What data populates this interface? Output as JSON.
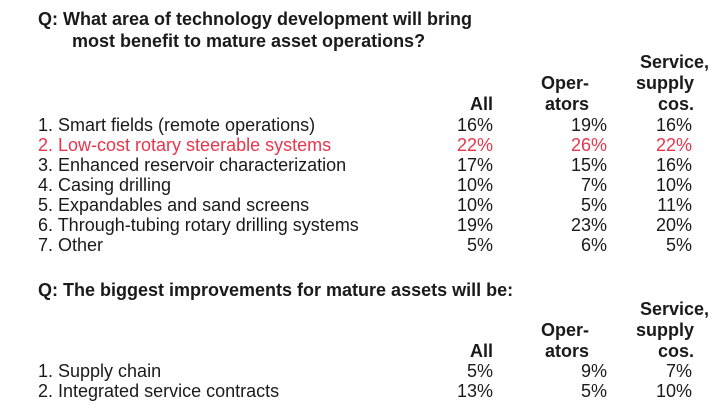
{
  "section1": {
    "question_line1": "Q: What area of technology development will bring",
    "question_line2": "most benefit to mature asset operations?",
    "headers": {
      "all": "All",
      "operators_1": "Oper-",
      "operators_2": "ators",
      "service_1": "Service,",
      "service_2": "supply",
      "service_3": "cos."
    },
    "rows": [
      {
        "label": "1. Smart fields (remote operations)",
        "all": "16%",
        "operators": "19%",
        "service": "16%"
      },
      {
        "label": "2. Low-cost rotary steerable systems",
        "all": "22%",
        "operators": "26%",
        "service": "22%"
      },
      {
        "label": "3. Enhanced reservoir characterization",
        "all": "17%",
        "operators": "15%",
        "service": "16%"
      },
      {
        "label": "4. Casing drilling",
        "all": "10%",
        "operators": "7%",
        "service": "10%"
      },
      {
        "label": "5. Expandables and sand screens",
        "all": "10%",
        "operators": "5%",
        "service": "11%"
      },
      {
        "label": "6. Through-tubing rotary drilling systems",
        "all": "19%",
        "operators": "23%",
        "service": "20%"
      },
      {
        "label": "7. Other",
        "all": "5%",
        "operators": "6%",
        "service": "5%"
      }
    ]
  },
  "section2": {
    "question": "Q: The biggest improvements for mature assets will be:",
    "headers": {
      "all": "All",
      "operators_1": "Oper-",
      "operators_2": "ators",
      "service_1": "Service,",
      "service_2": "supply",
      "service_3": "cos."
    },
    "rows": [
      {
        "label": "1. Supply chain",
        "all": "5%",
        "operators": "9%",
        "service": "7%"
      },
      {
        "label": "2. Integrated service contracts",
        "all": "13%",
        "operators": "5%",
        "service": "10%"
      }
    ]
  },
  "colors": {
    "text": "#1a1a1a",
    "highlight": "#e8354b"
  }
}
